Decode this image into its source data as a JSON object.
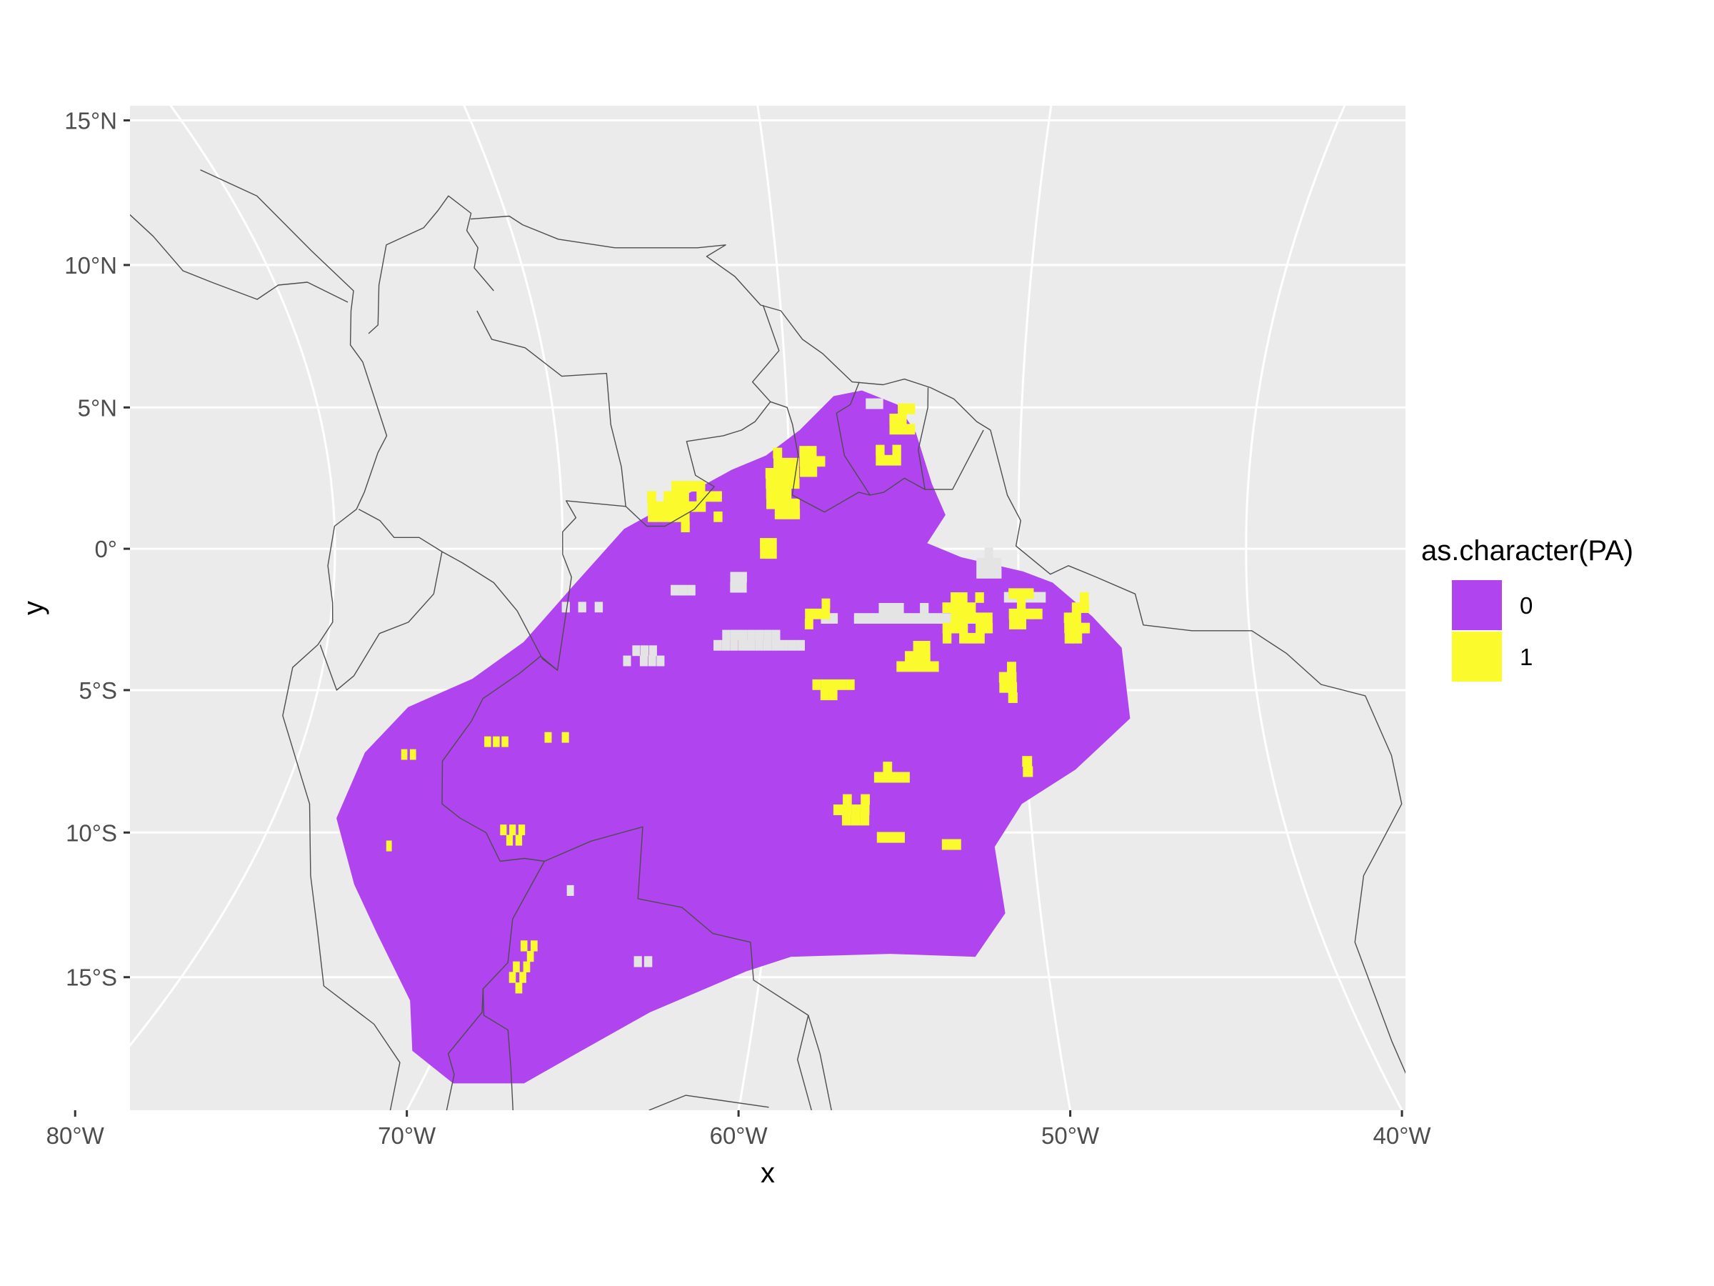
{
  "chart_data": {
    "type": "map",
    "xlabel": "x",
    "ylabel": "y",
    "xlim_deg": [
      -89,
      -33
    ],
    "ylim_deg": [
      -19.5,
      15.5
    ],
    "x_ticks": [
      {
        "value": -80,
        "label": "80°W"
      },
      {
        "value": -70,
        "label": "70°W"
      },
      {
        "value": -60,
        "label": "60°W"
      },
      {
        "value": -50,
        "label": "50°W"
      },
      {
        "value": -40,
        "label": "40°W"
      }
    ],
    "y_ticks": [
      {
        "value": 15,
        "label": "15°N"
      },
      {
        "value": 10,
        "label": "10°N"
      },
      {
        "value": 5,
        "label": "5°N"
      },
      {
        "value": 0,
        "label": "0°"
      },
      {
        "value": -5,
        "label": "5°S"
      },
      {
        "value": -10,
        "label": "10°S"
      },
      {
        "value": -15,
        "label": "15°S"
      }
    ],
    "grid": true,
    "legend": {
      "title": "as.character(PA)",
      "position": "right",
      "entries": [
        {
          "label": "0",
          "color": "#B044EE"
        },
        {
          "label": "1",
          "color": "#FAFA2D"
        }
      ]
    },
    "colors": {
      "panel": "#EBEBEB",
      "gridline": "#FFFFFF",
      "country_border": "#4D4D4D",
      "absent": "#B044EE",
      "present": "#FAFA2D",
      "no_data": "#E4E4E4"
    },
    "study_region_outline_lonlat": [
      [
        -56.8,
        5.6
      ],
      [
        -55.3,
        5.1
      ],
      [
        -54.5,
        4.1
      ],
      [
        -53.8,
        2.3
      ],
      [
        -53.2,
        1.2
      ],
      [
        -54.0,
        0.2
      ],
      [
        -52.5,
        -0.3
      ],
      [
        -49.8,
        -0.8
      ],
      [
        -48.5,
        -1.2
      ],
      [
        -46.8,
        -2.4
      ],
      [
        -45.6,
        -3.5
      ],
      [
        -45.5,
        -6.0
      ],
      [
        -48.0,
        -7.8
      ],
      [
        -50.3,
        -9.0
      ],
      [
        -51.5,
        -10.5
      ],
      [
        -51.3,
        -12.8
      ],
      [
        -52.5,
        -14.3
      ],
      [
        -55.5,
        -14.2
      ],
      [
        -59.0,
        -14.3
      ],
      [
        -60.5,
        -14.8
      ],
      [
        -63.5,
        -16.2
      ],
      [
        -65.5,
        -17.6
      ],
      [
        -66.8,
        -18.6
      ],
      [
        -69.0,
        -18.6
      ],
      [
        -70.8,
        -17.5
      ],
      [
        -71.7,
        -15.8
      ],
      [
        -74.0,
        -13.5
      ],
      [
        -75.7,
        -11.8
      ],
      [
        -77.5,
        -9.5
      ],
      [
        -77.3,
        -7.2
      ],
      [
        -76.0,
        -5.6
      ],
      [
        -73.5,
        -4.6
      ],
      [
        -71.5,
        -3.3
      ],
      [
        -69.5,
        -1.3
      ],
      [
        -67.3,
        0.7
      ],
      [
        -65.5,
        1.5
      ],
      [
        -62.5,
        2.8
      ],
      [
        -61.0,
        3.3
      ],
      [
        -59.5,
        4.2
      ],
      [
        -58.0,
        5.4
      ]
    ],
    "presence_patches_lonlat": [
      {
        "lon": -64.8,
        "lat": 1.4,
        "rlon": 1.8,
        "rlat": 0.8
      },
      {
        "lon": -60.5,
        "lat": 2.0,
        "rlon": 0.9,
        "rlat": 1.3
      },
      {
        "lon": -59.3,
        "lat": 2.9,
        "rlon": 0.6,
        "rlat": 0.7
      },
      {
        "lon": -56.0,
        "lat": 3.1,
        "rlon": 0.6,
        "rlat": 0.5
      },
      {
        "lon": -55.2,
        "lat": 4.3,
        "rlon": 0.8,
        "rlat": 0.6
      },
      {
        "lon": -61.2,
        "lat": -0.3,
        "rlon": 0.5,
        "rlat": 0.4
      },
      {
        "lon": -52.5,
        "lat": -2.7,
        "rlon": 1.2,
        "rlat": 1.0
      },
      {
        "lon": -50.0,
        "lat": -2.3,
        "rlon": 0.8,
        "rlat": 0.9
      },
      {
        "lon": -47.7,
        "lat": -2.7,
        "rlon": 0.7,
        "rlat": 1.0
      },
      {
        "lon": -54.7,
        "lat": -4.1,
        "rlon": 1.0,
        "rlat": 0.6
      },
      {
        "lon": -58.3,
        "lat": -5.1,
        "rlon": 1.0,
        "rlat": 0.6
      },
      {
        "lon": -50.8,
        "lat": -5.0,
        "rlon": 0.5,
        "rlat": 0.8
      },
      {
        "lon": -59.0,
        "lat": -2.6,
        "rlon": 0.7,
        "rlat": 0.6
      },
      {
        "lon": -72.5,
        "lat": -7.0,
        "rlon": 1.1,
        "rlat": 0.35
      },
      {
        "lon": -69.5,
        "lat": -6.9,
        "rlon": 0.9,
        "rlat": 0.3
      },
      {
        "lon": -75.8,
        "lat": -7.5,
        "rlon": 0.4,
        "rlat": 0.3
      },
      {
        "lon": -70.7,
        "lat": -10.3,
        "rlon": 0.6,
        "rlat": 0.5
      },
      {
        "lon": -57.3,
        "lat": -9.5,
        "rlon": 0.9,
        "rlat": 0.6
      },
      {
        "lon": -55.8,
        "lat": -8.2,
        "rlon": 0.8,
        "rlat": 0.4
      },
      {
        "lon": -56.0,
        "lat": -10.4,
        "rlon": 0.8,
        "rlat": 0.3
      },
      {
        "lon": -53.4,
        "lat": -10.6,
        "rlon": 0.5,
        "rlat": 0.35
      },
      {
        "lon": -68.6,
        "lat": -14.9,
        "rlon": 0.5,
        "rlat": 1.0
      },
      {
        "lon": -50.3,
        "lat": -7.8,
        "rlon": 0.2,
        "rlat": 0.6
      },
      {
        "lon": -75.3,
        "lat": -10.6,
        "rlon": 0.25,
        "rlat": 0.4
      }
    ],
    "no_data_patches_lonlat": [
      {
        "lon": -55.5,
        "lat": -2.6,
        "rlon": 3.5,
        "rlat": 0.4
      },
      {
        "lon": -61.5,
        "lat": -3.5,
        "rlon": 2.5,
        "rlat": 0.45
      },
      {
        "lon": -66.5,
        "lat": -4.0,
        "rlon": 1.0,
        "rlat": 0.5
      },
      {
        "lon": -69.5,
        "lat": -2.3,
        "rlon": 1.2,
        "rlat": 0.3
      },
      {
        "lon": -51.5,
        "lat": -0.8,
        "rlon": 0.7,
        "rlat": 0.6
      },
      {
        "lon": -50.0,
        "lat": -2.0,
        "rlon": 1.0,
        "rlat": 0.25
      },
      {
        "lon": -56.5,
        "lat": 4.9,
        "rlon": 0.5,
        "rlat": 0.3
      },
      {
        "lon": -62.5,
        "lat": -1.5,
        "rlon": 0.5,
        "rlat": 0.4
      },
      {
        "lon": -65.0,
        "lat": -1.7,
        "rlon": 0.6,
        "rlat": 0.3
      },
      {
        "lon": -64.5,
        "lat": -14.7,
        "rlon": 0.4,
        "rlat": 0.3
      },
      {
        "lon": -67.8,
        "lat": -12.2,
        "rlon": 0.25,
        "rlat": 0.35
      },
      {
        "lon": -65.7,
        "lat": -6.3,
        "rlon": 0.3,
        "rlat": 0.2
      }
    ],
    "country_border_lines_lonlat": [
      [
        [
          -80.5,
          13.3
        ],
        [
          -79.0,
          12.4
        ],
        [
          -78.0,
          10.5
        ],
        [
          -77.0,
          9.1
        ],
        [
          -77.4,
          8.4
        ],
        [
          -77.9,
          7.2
        ],
        [
          -77.6,
          6.6
        ],
        [
          -77.3,
          4.0
        ],
        [
          -77.8,
          3.4
        ],
        [
          -78.6,
          2.0
        ],
        [
          -79.0,
          1.4
        ],
        [
          -80.0,
          0.8
        ],
        [
          -80.3,
          -0.6
        ],
        [
          -80.0,
          -1.9
        ],
        [
          -79.9,
          -2.6
        ],
        [
          -80.4,
          -3.4
        ],
        [
          -81.3,
          -4.2
        ],
        [
          -81.2,
          -5.9
        ],
        [
          -80.0,
          -7.5
        ],
        [
          -78.8,
          -9.0
        ],
        [
          -77.5,
          -11.5
        ],
        [
          -76.2,
          -13.4
        ],
        [
          -74.9,
          -15.3
        ],
        [
          -72.5,
          -16.6
        ],
        [
          -71.0,
          -17.9
        ],
        [
          -70.5,
          -19.5
        ]
      ],
      [
        [
          -85.0,
          15.0
        ],
        [
          -84.5,
          12.5
        ],
        [
          -83.8,
          11.0
        ],
        [
          -83.4,
          9.8
        ],
        [
          -82.5,
          9.4
        ],
        [
          -81.0,
          8.8
        ],
        [
          -79.9,
          9.3
        ],
        [
          -78.7,
          9.4
        ],
        [
          -77.4,
          8.7
        ]
      ],
      [
        [
          -77.0,
          7.6
        ],
        [
          -76.5,
          7.9
        ],
        [
          -75.9,
          9.3
        ],
        [
          -75.0,
          10.7
        ],
        [
          -73.3,
          11.3
        ],
        [
          -72.5,
          11.9
        ],
        [
          -71.9,
          12.4
        ],
        [
          -71.3,
          11.8
        ],
        [
          -71.7,
          11.2
        ],
        [
          -71.5,
          10.6
        ],
        [
          -71.9,
          9.9
        ],
        [
          -71.4,
          9.1
        ]
      ],
      [
        [
          -71.4,
          11.6
        ],
        [
          -69.9,
          11.7
        ],
        [
          -69.5,
          11.4
        ],
        [
          -68.3,
          10.9
        ],
        [
          -66.2,
          10.6
        ],
        [
          -64.2,
          10.6
        ],
        [
          -63.0,
          10.6
        ],
        [
          -61.9,
          10.7
        ],
        [
          -62.7,
          10.3
        ],
        [
          -61.7,
          9.6
        ],
        [
          -60.8,
          8.6
        ],
        [
          -60.0,
          8.4
        ],
        [
          -59.2,
          7.4
        ],
        [
          -58.4,
          6.9
        ],
        [
          -57.2,
          5.9
        ],
        [
          -55.9,
          5.8
        ],
        [
          -55.0,
          6.0
        ],
        [
          -53.9,
          5.7
        ],
        [
          -52.9,
          5.3
        ],
        [
          -51.9,
          4.5
        ],
        [
          -51.3,
          4.2
        ],
        [
          -50.5,
          1.9
        ],
        [
          -49.9,
          1.0
        ],
        [
          -50.1,
          0.1
        ],
        [
          -48.6,
          -0.9
        ],
        [
          -47.8,
          -0.6
        ],
        [
          -46.6,
          -1.0
        ],
        [
          -44.9,
          -1.6
        ],
        [
          -44.6,
          -2.7
        ],
        [
          -42.5,
          -2.9
        ],
        [
          -41.4,
          -2.9
        ],
        [
          -39.9,
          -2.9
        ],
        [
          -38.5,
          -3.7
        ],
        [
          -37.2,
          -4.8
        ],
        [
          -35.4,
          -5.2
        ],
        [
          -34.9,
          -7.3
        ],
        [
          -35.1,
          -9.0
        ],
        [
          -36.5,
          -10.4
        ],
        [
          -37.6,
          -11.5
        ],
        [
          -38.9,
          -13.8
        ],
        [
          -39.2,
          -17.2
        ],
        [
          -39.4,
          -19.5
        ]
      ],
      [
        [
          -72.3,
          8.4
        ],
        [
          -72.0,
          7.4
        ],
        [
          -70.7,
          7.1
        ],
        [
          -69.4,
          6.1
        ],
        [
          -67.5,
          6.2
        ],
        [
          -67.6,
          4.4
        ],
        [
          -67.3,
          2.9
        ],
        [
          -67.2,
          1.5
        ],
        [
          -69.8,
          1.7
        ],
        [
          -69.4,
          1.1
        ],
        [
          -70.0,
          0.6
        ],
        [
          -70.0,
          -0.2
        ],
        [
          -69.6,
          -1.0
        ],
        [
          -69.9,
          -4.3
        ],
        [
          -70.7,
          -3.8
        ],
        [
          -71.5,
          -4.4
        ],
        [
          -72.9,
          -5.3
        ],
        [
          -73.2,
          -6.1
        ],
        [
          -74.0,
          -7.5
        ],
        [
          -73.5,
          -9.0
        ],
        [
          -72.6,
          -9.5
        ],
        [
          -71.4,
          -10.0
        ],
        [
          -70.5,
          -11.0
        ],
        [
          -69.6,
          -10.9
        ],
        [
          -68.8,
          -11.0
        ],
        [
          -69.3,
          -13.0
        ],
        [
          -68.9,
          -14.5
        ],
        [
          -69.4,
          -15.4
        ],
        [
          -69.1,
          -16.2
        ],
        [
          -69.6,
          -17.6
        ],
        [
          -69.1,
          -18.3
        ],
        [
          -68.8,
          -19.5
        ]
      ],
      [
        [
          -69.4,
          -15.4
        ],
        [
          -69.0,
          -16.3
        ],
        [
          -68.0,
          -16.8
        ],
        [
          -67.4,
          -18.1
        ],
        [
          -66.8,
          -19.5
        ]
      ],
      [
        [
          -68.8,
          -11.0
        ],
        [
          -67.2,
          -10.3
        ],
        [
          -65.3,
          -9.8
        ],
        [
          -64.9,
          -12.3
        ],
        [
          -63.2,
          -12.6
        ],
        [
          -61.9,
          -13.5
        ],
        [
          -60.5,
          -13.8
        ],
        [
          -60.2,
          -15.1
        ],
        [
          -58.2,
          -16.3
        ],
        [
          -58.4,
          -17.8
        ],
        [
          -57.8,
          -19.5
        ]
      ],
      [
        [
          -69.9,
          -4.3
        ],
        [
          -70.6,
          -3.9
        ],
        [
          -71.9,
          -2.2
        ],
        [
          -73.0,
          -1.2
        ],
        [
          -74.4,
          -0.5
        ],
        [
          -75.3,
          -0.1
        ],
        [
          -76.3,
          0.4
        ],
        [
          -77.4,
          0.4
        ],
        [
          -78.0,
          1.0
        ],
        [
          -78.9,
          1.4
        ]
      ],
      [
        [
          -75.3,
          -0.1
        ],
        [
          -75.6,
          -1.6
        ],
        [
          -76.6,
          -2.6
        ],
        [
          -77.8,
          -3.0
        ],
        [
          -78.6,
          -4.5
        ],
        [
          -79.2,
          -5.0
        ],
        [
          -80.3,
          -3.4
        ]
      ],
      [
        [
          -60.7,
          8.6
        ],
        [
          -60.2,
          7.0
        ],
        [
          -61.4,
          5.9
        ],
        [
          -60.7,
          5.2
        ],
        [
          -60.0,
          5.0
        ],
        [
          -59.8,
          4.4
        ],
        [
          -59.6,
          3.3
        ],
        [
          -59.9,
          1.9
        ],
        [
          -58.5,
          1.3
        ],
        [
          -57.0,
          2.0
        ],
        [
          -56.5,
          1.9
        ],
        [
          -55.9,
          2.0
        ],
        [
          -55.0,
          2.5
        ],
        [
          -54.1,
          2.1
        ],
        [
          -52.9,
          2.1
        ],
        [
          -51.6,
          4.2
        ]
      ],
      [
        [
          -56.9,
          5.9
        ],
        [
          -57.3,
          5.1
        ],
        [
          -57.9,
          4.8
        ],
        [
          -57.6,
          3.3
        ],
        [
          -56.5,
          1.9
        ]
      ],
      [
        [
          -54.1,
          2.1
        ],
        [
          -54.4,
          3.5
        ],
        [
          -54.0,
          5.0
        ],
        [
          -54.0,
          5.7
        ]
      ],
      [
        [
          -67.2,
          1.5
        ],
        [
          -66.3,
          0.8
        ],
        [
          -65.5,
          0.8
        ],
        [
          -64.2,
          1.4
        ],
        [
          -63.3,
          2.2
        ],
        [
          -64.1,
          2.6
        ],
        [
          -64.4,
          3.8
        ],
        [
          -62.8,
          4.0
        ],
        [
          -62.0,
          4.2
        ],
        [
          -61.4,
          4.5
        ],
        [
          -60.7,
          5.2
        ]
      ],
      [
        [
          -58.2,
          -16.3
        ],
        [
          -57.7,
          -17.6
        ],
        [
          -57.2,
          -19.5
        ]
      ],
      [
        [
          -62.7,
          -19.5
        ],
        [
          -61.7,
          -19.0
        ],
        [
          -59.1,
          -19.4
        ]
      ]
    ]
  }
}
